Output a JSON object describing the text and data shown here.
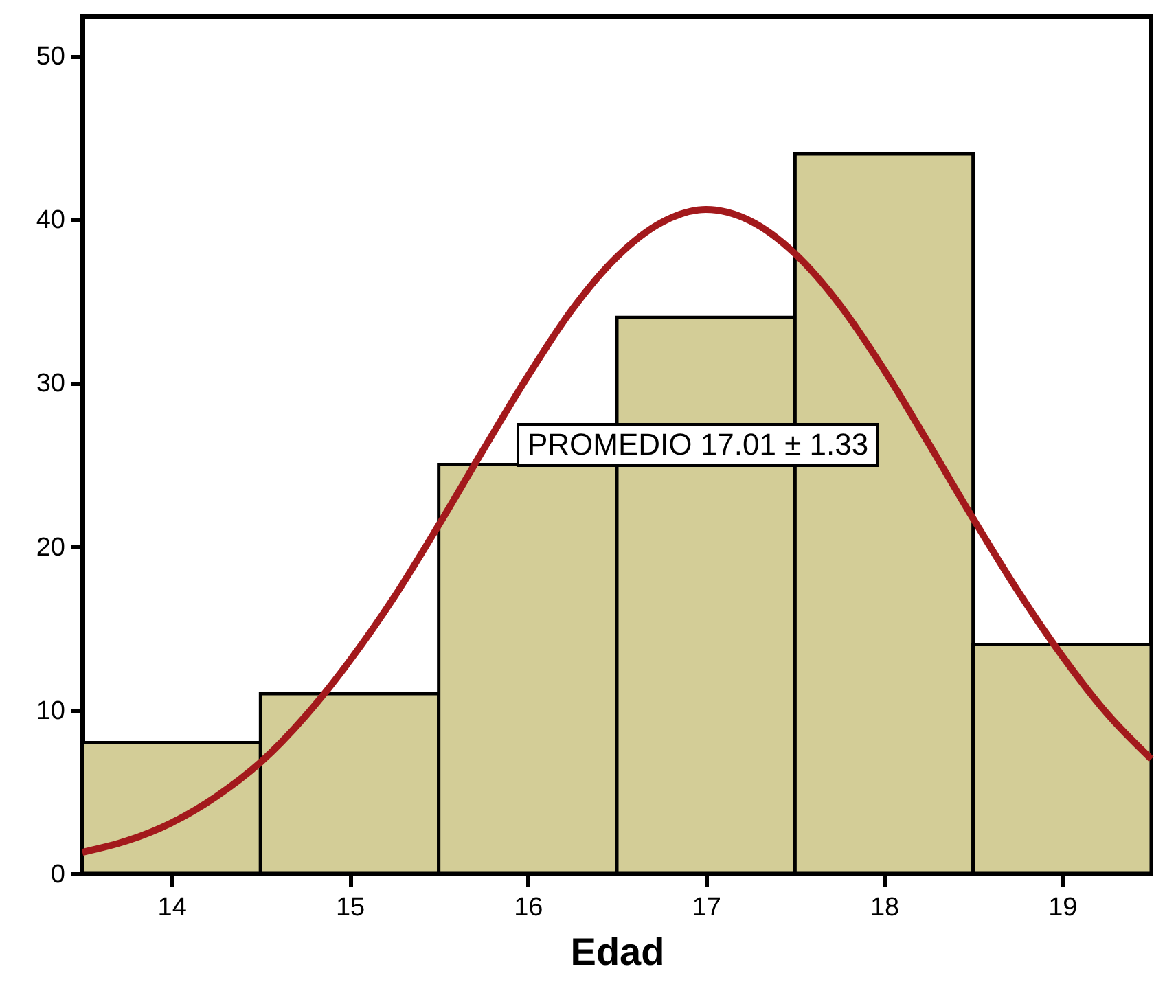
{
  "chart_data": {
    "type": "histogram",
    "xlabel": "Edad",
    "bins": [
      13.5,
      14.5,
      15.5,
      16.5,
      17.5,
      18.5,
      19.5
    ],
    "values": [
      8,
      11,
      25,
      34,
      44,
      14
    ],
    "color": "#d3cd97",
    "series": [
      {
        "type": "line",
        "color": "#a3191c",
        "x": [
          13.5,
          13.75,
          14.0,
          14.25,
          14.5,
          14.75,
          15.0,
          15.25,
          15.5,
          15.75,
          16.0,
          16.25,
          16.5,
          16.75,
          17.0,
          17.25,
          17.5,
          17.75,
          18.0,
          18.25,
          18.5,
          18.75,
          19.0,
          19.25,
          19.5
        ],
        "values": [
          1.3,
          2.0,
          3.1,
          4.7,
          6.8,
          9.6,
          13.0,
          16.9,
          21.3,
          25.9,
          30.4,
          34.5,
          37.7,
          39.8,
          40.6,
          39.9,
          37.9,
          34.8,
          30.8,
          26.3,
          21.7,
          17.3,
          13.3,
          9.8,
          7.0
        ]
      }
    ],
    "xlim": [
      13.5,
      19.5
    ],
    "xticks": [
      14,
      15,
      16,
      17,
      18,
      19
    ],
    "ylim": [
      0,
      52.4
    ],
    "yticks": [
      0,
      10,
      20,
      30,
      40,
      50
    ],
    "annotations": [
      "PROMEDIO 17.01 ± 1.33"
    ],
    "grid": false
  }
}
